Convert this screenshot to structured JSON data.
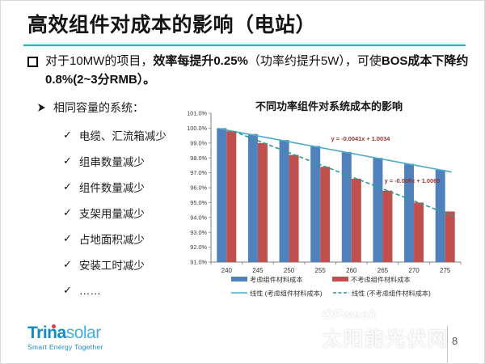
{
  "slide": {
    "title": "高效组件对成本的影响（电站）"
  },
  "colors": {
    "accent_teal": "#2ab3b3",
    "bar_blue": "#4F81BD",
    "bar_red": "#C0504D",
    "trend_blue": "#4BACC6",
    "trend_green": "#2E9B8F",
    "equation_text": "#943634",
    "logo_blue": "#1789c5",
    "logo_light_blue": "#3fb0e0",
    "logo_dot_red": "#e03a3e"
  },
  "intro": {
    "segments": [
      {
        "text": "对于10MW的项目，",
        "bold": false
      },
      {
        "text": "效率每提升0.25%",
        "bold": true
      },
      {
        "text": "（功率约提升5W），可使",
        "bold": false
      },
      {
        "text": "BOS成本下降约0.8%(2~3分RMB）。",
        "bold": true
      }
    ]
  },
  "list": {
    "heading": "相同容量的系统：",
    "check_glyph": "✓",
    "items": [
      "电缆、汇流箱减少",
      "组串数量减少",
      "组件数量减少",
      "支架用量减少",
      "占地面积减少",
      "安装工时减少",
      "……"
    ]
  },
  "chart_data": {
    "type": "bar",
    "title": "不同功率组件对系统成本的影响",
    "categories": [
      "240",
      "245",
      "250",
      "255",
      "260",
      "265",
      "270",
      "275"
    ],
    "series": [
      {
        "name": "考虑组件材料成本",
        "color": "#4F81BD",
        "values": [
          100.0,
          99.6,
          99.2,
          98.8,
          98.4,
          98.0,
          97.6,
          97.2
        ]
      },
      {
        "name": "不考虑组件材料成本",
        "color": "#C0504D",
        "values": [
          99.8,
          99.0,
          98.2,
          97.4,
          96.6,
          95.8,
          95.0,
          94.4
        ]
      }
    ],
    "trendlines": [
      {
        "label": "线性 (考虑组件材料成本)",
        "equation": "y = -0.0041x + 1.0034",
        "style": "solid",
        "color": "#4BACC6",
        "start_value": 99.95,
        "end_value": 97.05
      },
      {
        "label": "线性 (不考虑组件材料成本)",
        "equation": "y = -0.008x + 1.0065",
        "style": "dashed",
        "color": "#2E9B8F",
        "start_value": 99.8,
        "end_value": 94.05
      }
    ],
    "xlabel": "",
    "ylabel": "",
    "ylim": [
      91.0,
      101.0
    ],
    "ytick_step": 1.0,
    "ytick_suffix": "%",
    "grid": false,
    "legend_position": "bottom"
  },
  "footer": {
    "logo": {
      "brand_bold": "Trina",
      "brand_light": "solar",
      "tagline": "Smart Energy Together"
    },
    "watermark_line1": "OFweek",
    "watermark_line2": "太阳能光伏网",
    "page_number": "8"
  }
}
